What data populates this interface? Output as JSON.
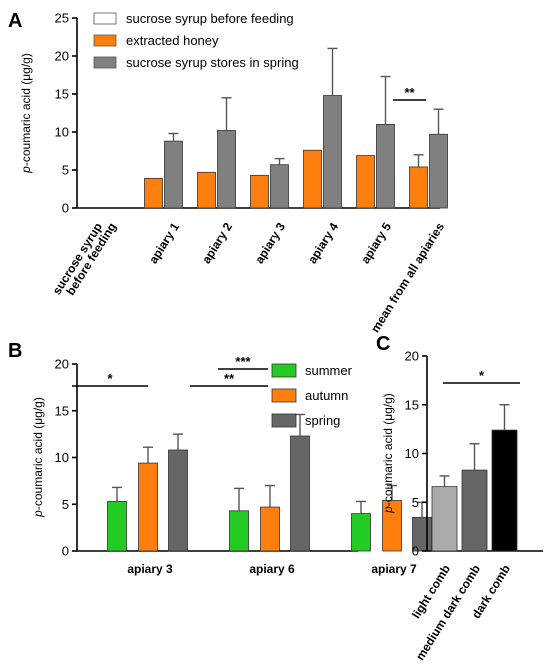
{
  "chart_data": [
    {
      "type": "bar",
      "panel_label": "A",
      "ylabel": "p-coumaric acid (μg/g)",
      "ylim": [
        0,
        25
      ],
      "yticks": [
        0,
        5,
        10,
        15,
        20,
        25
      ],
      "categories": [
        "sucrose syrup before feeding",
        "apiary 1",
        "apiary 2",
        "apiary 3",
        "apiary 4",
        "apiary 5",
        "mean from all apiaries"
      ],
      "series": [
        {
          "name": "sucrose syrup before feeding",
          "color": "#ffffff",
          "values": [
            0,
            null,
            null,
            null,
            null,
            null,
            null
          ],
          "errors": [
            0,
            null,
            null,
            null,
            null,
            null,
            null
          ]
        },
        {
          "name": "extracted honey",
          "color": "#ff7f0e",
          "values": [
            null,
            3.9,
            4.7,
            4.3,
            7.6,
            6.9,
            5.4
          ],
          "errors": [
            null,
            0,
            0,
            0,
            0,
            0,
            1.6
          ]
        },
        {
          "name": "sucrose syrup stores in spring",
          "color": "#808080",
          "values": [
            null,
            8.8,
            10.2,
            5.7,
            14.8,
            11.0,
            9.7
          ],
          "errors": [
            null,
            1.0,
            4.3,
            0.8,
            6.2,
            6.3,
            3.3
          ]
        }
      ],
      "significance": [
        {
          "label": "**",
          "category": 6,
          "from_series": 1,
          "to_series": 2
        }
      ],
      "legend": "top-left"
    },
    {
      "type": "bar",
      "panel_label": "B",
      "ylabel": "p-coumaric acid (μg/g)",
      "ylim": [
        0,
        20
      ],
      "yticks": [
        0,
        5,
        10,
        15,
        20
      ],
      "categories": [
        "apiary 3",
        "apiary 6",
        "apiary 7"
      ],
      "series": [
        {
          "name": "summer",
          "color": "#22cc22",
          "values": [
            5.3,
            4.3,
            4.0
          ],
          "errors": [
            1.5,
            2.4,
            1.3
          ]
        },
        {
          "name": "autumn",
          "color": "#ff7f0e",
          "values": [
            9.4,
            4.7,
            5.4
          ],
          "errors": [
            1.7,
            2.3,
            1.6
          ]
        },
        {
          "name": "spring",
          "color": "#666666",
          "values": [
            10.8,
            12.3,
            3.6
          ],
          "errors": [
            1.7,
            2.3,
            1.6
          ]
        }
      ],
      "significance": [
        {
          "label": "*",
          "category": 0,
          "from_series": 0,
          "to_series": 2
        },
        {
          "label": "**",
          "category": 1,
          "from_series": 0,
          "to_series": 2
        },
        {
          "label": "***",
          "category": 1,
          "from_series": 1,
          "to_series": 2
        }
      ],
      "legend": "top-right"
    },
    {
      "type": "bar",
      "panel_label": "C",
      "ylabel": "p-coumaric acid (μg/g)",
      "ylim": [
        0,
        20
      ],
      "yticks": [
        0,
        5,
        10,
        15,
        20
      ],
      "categories": [
        "light comb",
        "medium dark comb",
        "dark comb"
      ],
      "series": [
        {
          "colors": [
            "#aaaaaa",
            "#666666",
            "#000000"
          ],
          "values": [
            6.6,
            8.3,
            12.4
          ],
          "errors": [
            1.1,
            2.7,
            2.6
          ]
        }
      ],
      "significance": [
        {
          "label": "*",
          "from_category": 0,
          "to_category": 2
        }
      ]
    }
  ]
}
